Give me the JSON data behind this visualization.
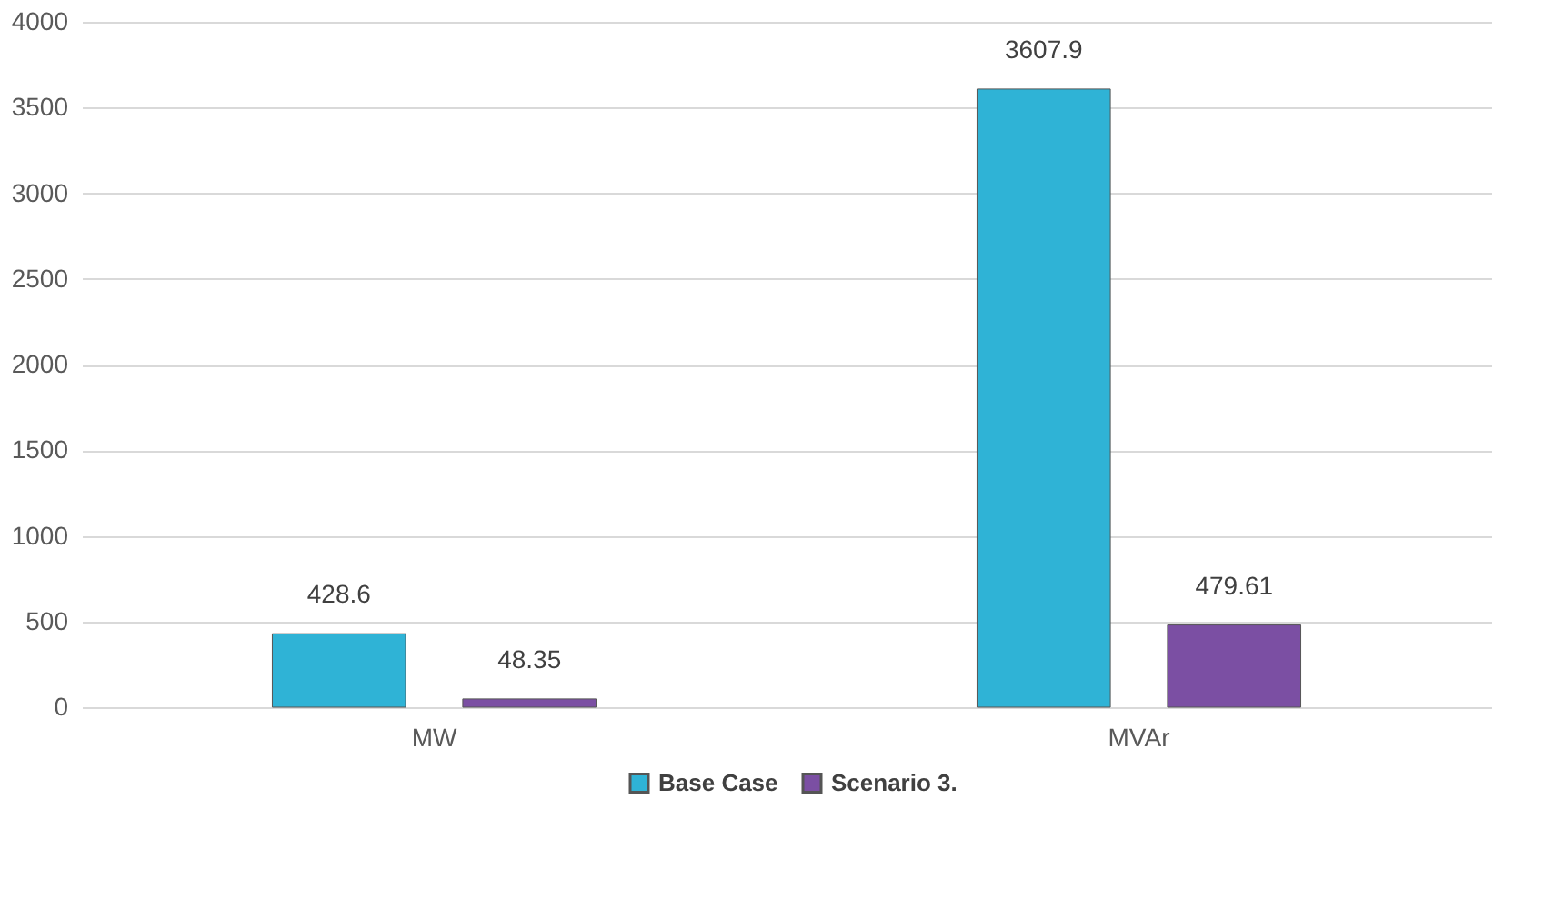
{
  "chart_data": {
    "type": "bar",
    "categories": [
      "MW",
      "MVAr"
    ],
    "series": [
      {
        "name": "Base Case",
        "color": "#2fb3d6",
        "values": [
          428.6,
          3607.9
        ]
      },
      {
        "name": "Scenario 3.",
        "color": "#7b4fa3",
        "values": [
          48.35,
          479.61
        ]
      }
    ],
    "ylim": [
      0,
      4000
    ],
    "yticks": [
      0,
      500,
      1000,
      1500,
      2000,
      2500,
      3000,
      3500,
      4000
    ],
    "grid": "y",
    "legend": "bottom",
    "data_labels": true
  }
}
